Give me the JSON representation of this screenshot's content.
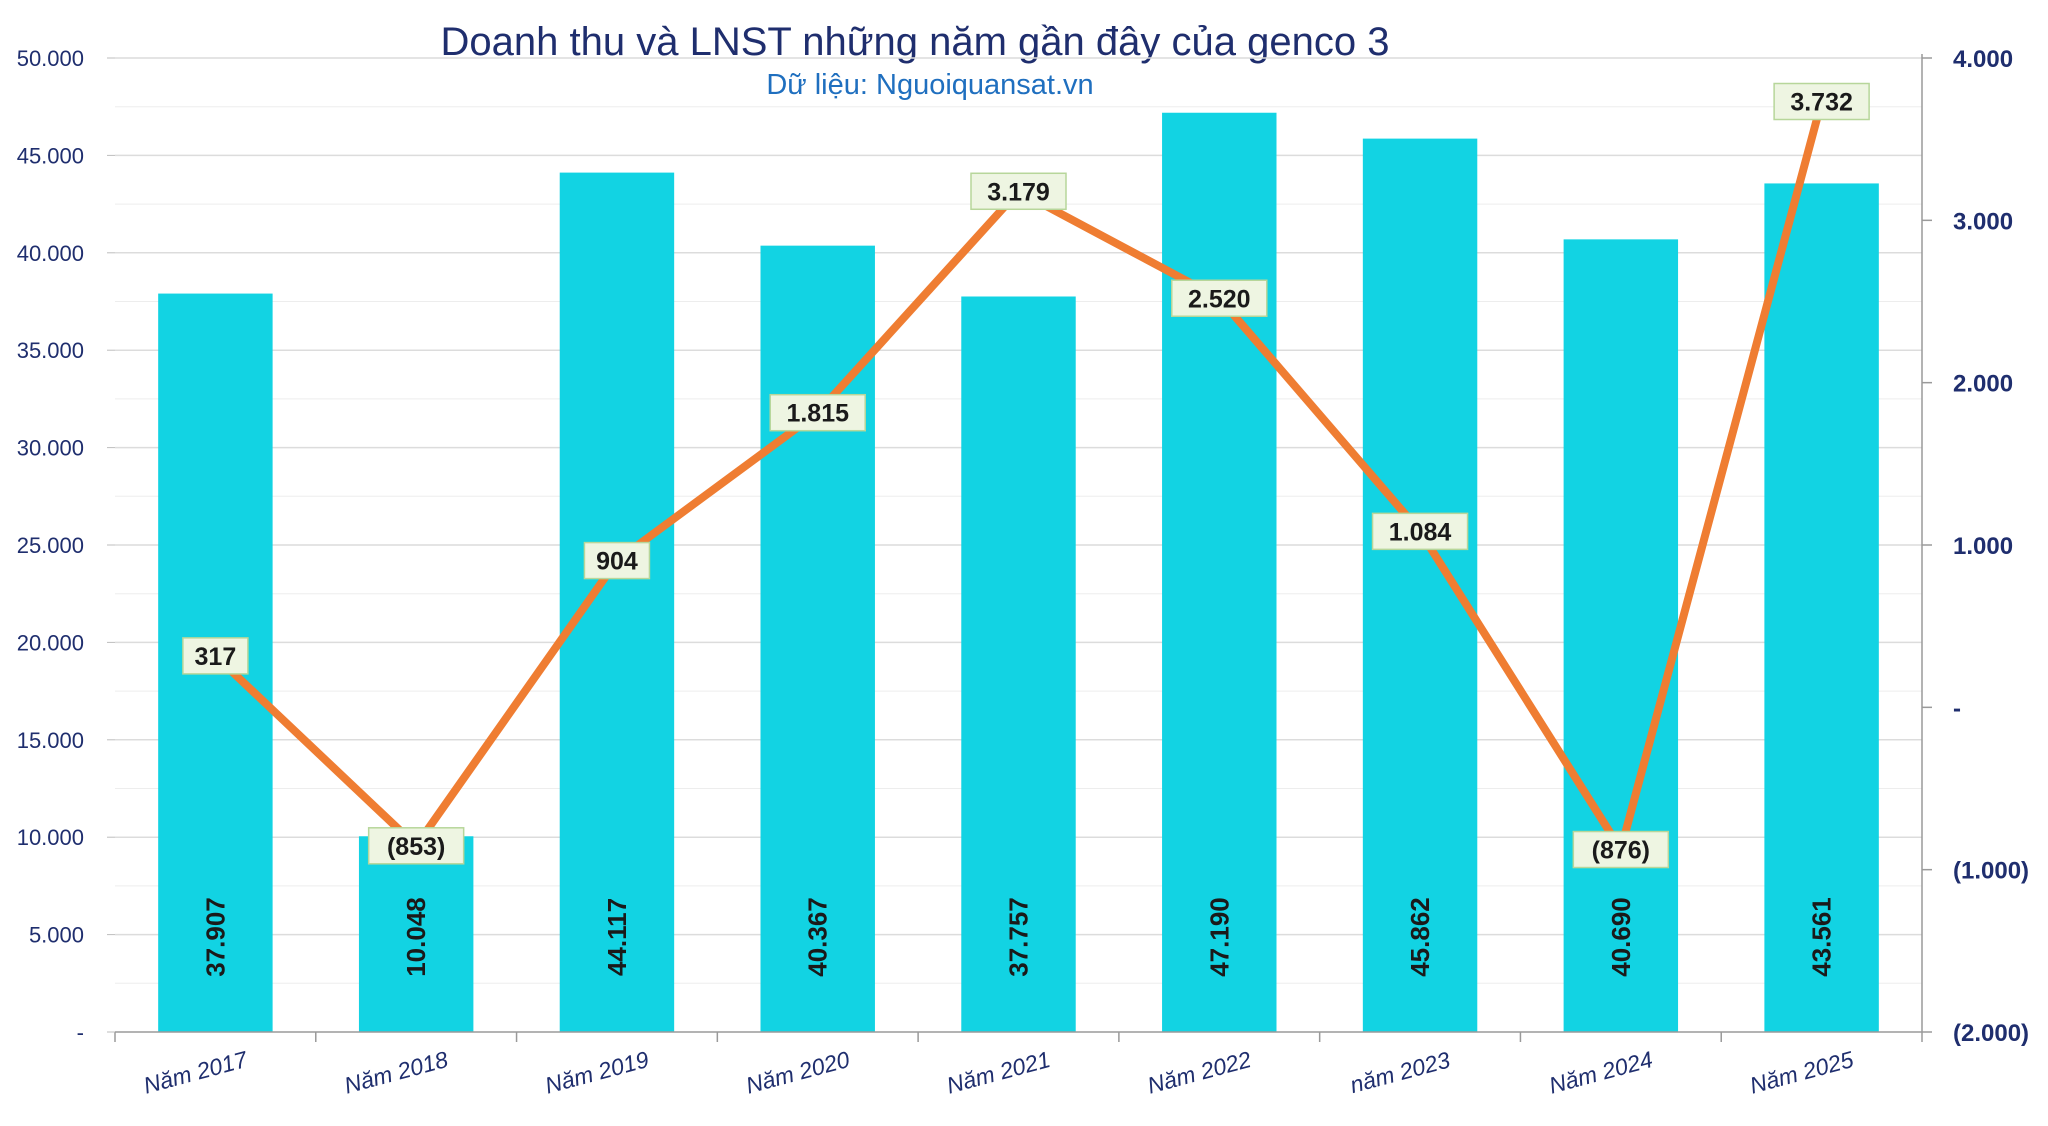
{
  "chart_data": {
    "type": "bar",
    "title": "Doanh thu và LNST những năm gần đây của genco 3",
    "subtitle": "Dữ liệu: Nguoiquansat.vn",
    "categories": [
      "Năm 2017",
      "Năm 2018",
      "Năm 2019",
      "Năm 2020",
      "Năm 2021",
      "Năm 2022",
      "năm 2023",
      "Năm 2024",
      "Năm 2025"
    ],
    "series": [
      {
        "chart_type": "bar",
        "axis": "left",
        "color": "#12d3e3",
        "values": [
          37907,
          10048,
          44117,
          40367,
          37757,
          47190,
          45862,
          40690,
          43561
        ],
        "labels": [
          "37.907",
          "10.048",
          "44.117",
          "40.367",
          "37.757",
          "47.190",
          "45.862",
          "40.690",
          "43.561"
        ]
      },
      {
        "chart_type": "line",
        "axis": "right",
        "color": "#ef7d32",
        "values": [
          317,
          -853,
          904,
          1815,
          3179,
          2520,
          1084,
          -876,
          3732
        ],
        "labels": [
          "317",
          "(853)",
          "904",
          "1.815",
          "3.179",
          "2.520",
          "1.084",
          "(876)",
          "3.732"
        ]
      }
    ],
    "y_left": {
      "range": [
        0,
        50000
      ],
      "ticks": [
        0,
        5000,
        10000,
        15000,
        20000,
        25000,
        30000,
        35000,
        40000,
        45000,
        50000
      ],
      "tick_labels": [
        "-",
        "5.000",
        "10.000",
        "15.000",
        "20.000",
        "25.000",
        "30.000",
        "35.000",
        "40.000",
        "45.000",
        "50.000"
      ]
    },
    "y_right": {
      "range": [
        -2000,
        4000
      ],
      "ticks": [
        -2000,
        -1000,
        0,
        1000,
        2000,
        3000,
        4000
      ],
      "tick_labels": [
        "(2.000)",
        "(1.000)",
        "-",
        "1.000",
        "2.000",
        "3.000",
        "4.000"
      ]
    },
    "grid": true,
    "legend": "none"
  }
}
